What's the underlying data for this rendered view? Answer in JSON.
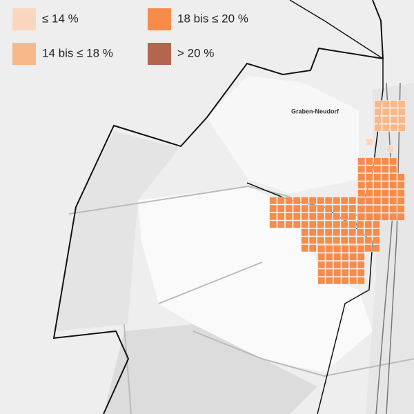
{
  "legend": {
    "items": [
      {
        "label": "≤ 14 %",
        "color": "#fad6c0"
      },
      {
        "label": "14 bis ≤ 18 %",
        "color": "#f9b88a"
      },
      {
        "label": "18 bis ≤ 20 %",
        "color": "#f68b4a"
      },
      {
        "label": "> 20 %",
        "color": "#b5644e"
      }
    ]
  },
  "places": [
    {
      "label": "Graben-Neudorf"
    }
  ]
}
